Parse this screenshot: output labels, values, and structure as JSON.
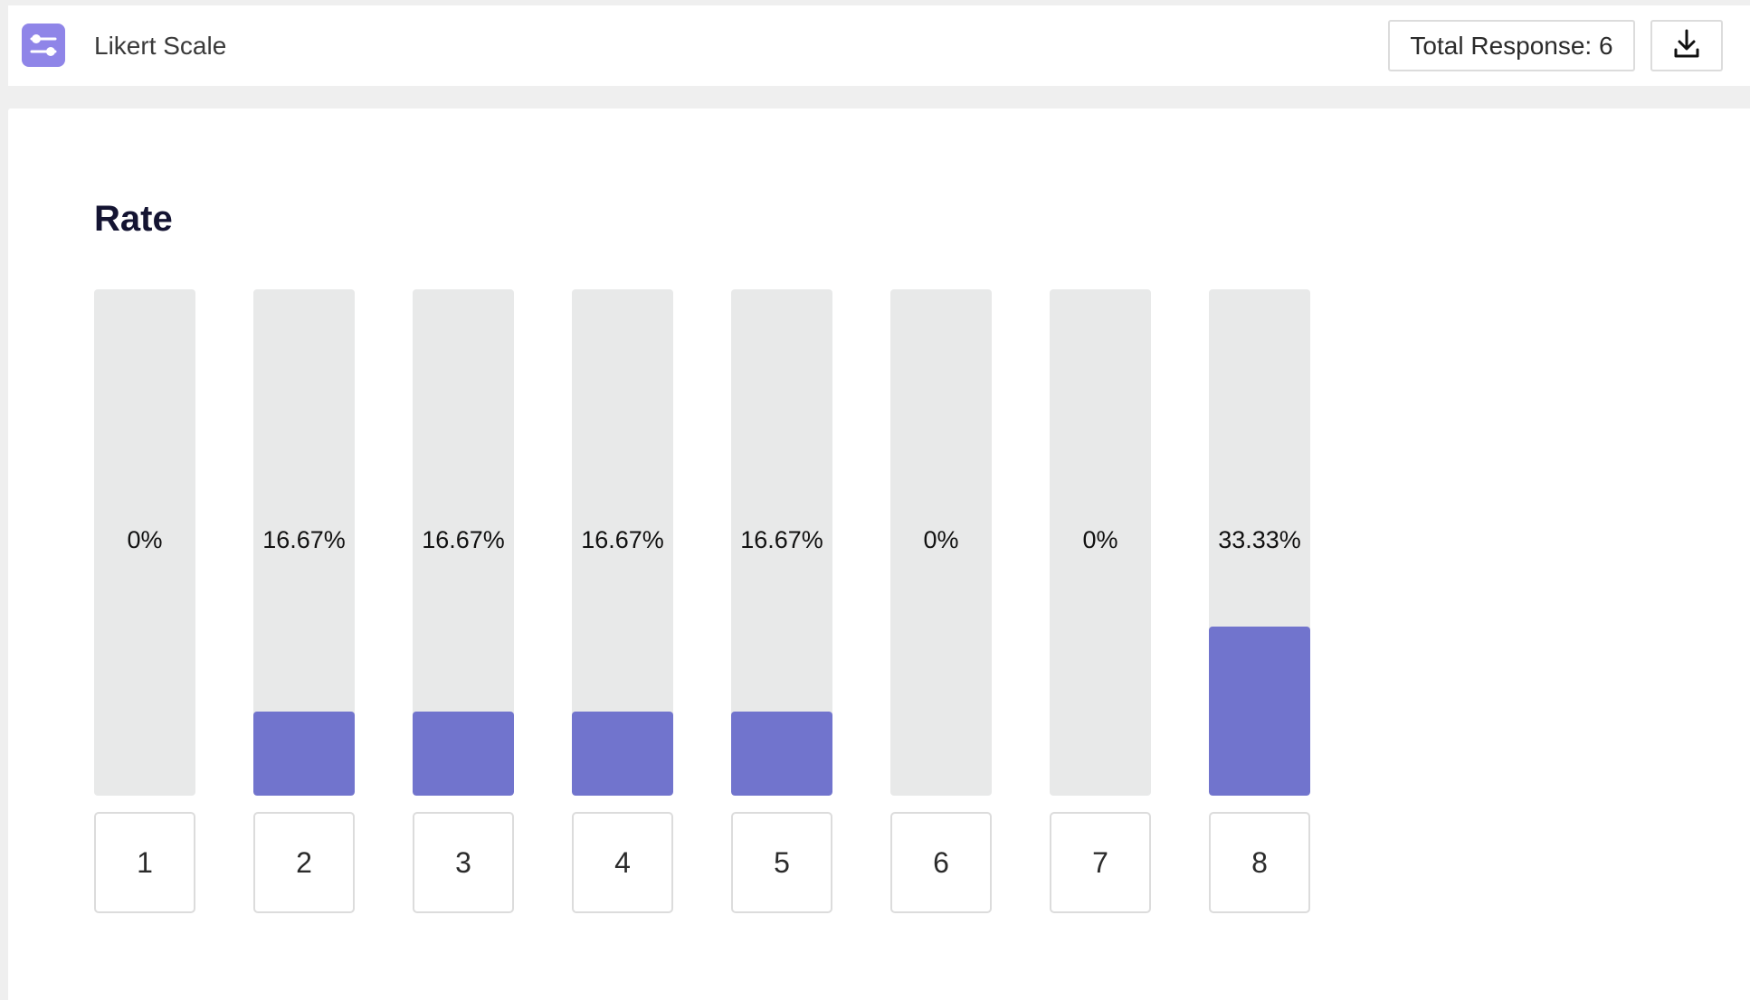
{
  "header": {
    "app_icon": "sliders-icon",
    "title": "Likert Scale",
    "total_response_label": "Total Response: 6",
    "download_icon": "download-icon"
  },
  "question": {
    "title": "Rate"
  },
  "chart_data": {
    "type": "bar",
    "categories": [
      "1",
      "2",
      "3",
      "4",
      "5",
      "6",
      "7",
      "8"
    ],
    "values": [
      0,
      16.67,
      16.67,
      16.67,
      16.67,
      0,
      0,
      33.33
    ],
    "value_labels": [
      "0%",
      "16.67%",
      "16.67%",
      "16.67%",
      "16.67%",
      "0%",
      "0%",
      "33.33%"
    ],
    "ylim": [
      0,
      100
    ],
    "bar_color": "#7174cd",
    "track_color": "#e8e9e9",
    "title": "",
    "xlabel": "",
    "ylabel": ""
  },
  "colors": {
    "accent": "#8f85e8",
    "bar": "#7174cd"
  }
}
